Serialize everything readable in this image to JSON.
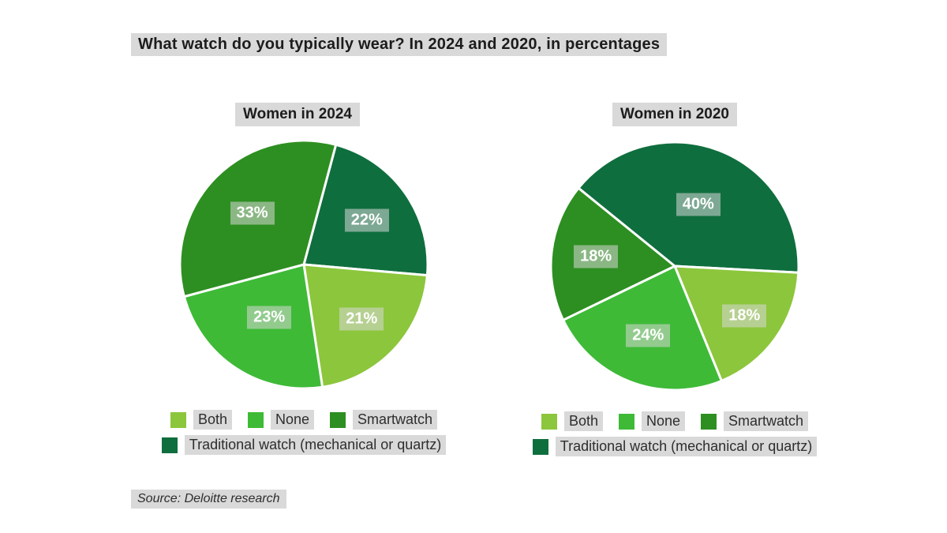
{
  "page": {
    "background": "#ffffff",
    "title": "What watch do you typically wear? In 2024 and 2020, in percentages",
    "source": "Source: Deloitte research"
  },
  "palette": {
    "both": "#8cc63c",
    "none": "#3eba37",
    "smartwatch": "#2d8f21",
    "traditional": "#0f6e3e",
    "chip_bg": "#d9d9d9",
    "slice_border": "#ffffff",
    "value_label_text": "#ffffff"
  },
  "legend": {
    "rows": [
      [
        {
          "label": "Both",
          "color_key": "both"
        },
        {
          "label": "None",
          "color_key": "none"
        },
        {
          "label": "Smartwatch",
          "color_key": "smartwatch"
        }
      ],
      [
        {
          "label": "Traditional watch (mechanical or quartz)",
          "color_key": "traditional"
        }
      ]
    ]
  },
  "chart_data": [
    {
      "type": "pie",
      "title": "Women in 2024",
      "start_angle_deg": 15,
      "slices": [
        {
          "label": "Traditional watch (mechanical or quartz)",
          "value": 22,
          "display": "22%",
          "color_key": "traditional",
          "label_factor": 0.62
        },
        {
          "label": "Both",
          "value": 21,
          "display": "21%",
          "color_key": "both",
          "label_factor": 0.64
        },
        {
          "label": "None",
          "value": 23,
          "display": "23%",
          "color_key": "none",
          "label_factor": 0.51
        },
        {
          "label": "Smartwatch",
          "value": 33,
          "display": "33%",
          "color_key": "smartwatch",
          "label_factor": 0.59
        }
      ]
    },
    {
      "type": "pie",
      "title": "Women in 2020",
      "start_angle_deg": -51,
      "slices": [
        {
          "label": "Traditional watch (mechanical or quartz)",
          "value": 40,
          "display": "40%",
          "color_key": "traditional",
          "label_factor": 0.53
        },
        {
          "label": "Both",
          "value": 18,
          "display": "18%",
          "color_key": "both",
          "label_factor": 0.69
        },
        {
          "label": "None",
          "value": 24,
          "display": "24%",
          "color_key": "none",
          "label_factor": 0.6
        },
        {
          "label": "Smartwatch",
          "value": 18,
          "display": "18%",
          "color_key": "smartwatch",
          "label_factor": 0.64
        }
      ]
    }
  ]
}
